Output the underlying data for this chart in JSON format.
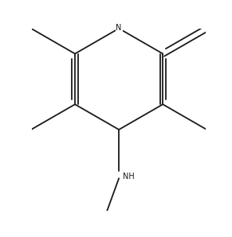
{
  "bg_color": "#ffffff",
  "line_color": "#1a1a1a",
  "lw": 1.3,
  "font_size": 7.0,
  "figsize": [
    2.91,
    2.98
  ],
  "dpi": 100
}
